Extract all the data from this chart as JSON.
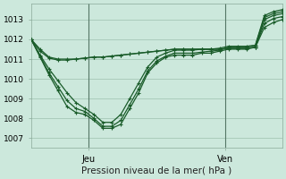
{
  "xlabel": "Pression niveau de la mer( hPa )",
  "bg_color": "#cce8dc",
  "grid_color": "#aaccbc",
  "line_color": "#1a5c2a",
  "ylim": [
    1006.5,
    1013.8
  ],
  "xlim": [
    0,
    44
  ],
  "yticks": [
    1007,
    1008,
    1009,
    1010,
    1011,
    1012,
    1013
  ],
  "xtick_positions": [
    10,
    34
  ],
  "xtick_labels": [
    "Jeu",
    "Ven"
  ],
  "vline_positions": [
    10,
    34
  ],
  "series": [
    [
      1012.0,
      1011.1,
      1010.2,
      1009.4,
      1008.6,
      1008.3,
      1008.2,
      1007.9,
      1007.5,
      1007.5,
      1007.7,
      1008.5,
      1009.3,
      1010.3,
      1010.8,
      1011.1,
      1011.2,
      1011.2,
      1011.2,
      1011.3,
      1011.3,
      1011.4,
      1011.5,
      1011.5,
      1011.5,
      1011.6,
      1013.0,
      1013.2,
      1013.3
    ],
    [
      1012.0,
      1011.15,
      1010.3,
      1009.6,
      1008.9,
      1008.5,
      1008.35,
      1008.0,
      1007.6,
      1007.6,
      1007.9,
      1008.7,
      1009.5,
      1010.4,
      1010.9,
      1011.15,
      1011.3,
      1011.3,
      1011.3,
      1011.35,
      1011.4,
      1011.45,
      1011.6,
      1011.6,
      1011.6,
      1011.7,
      1013.1,
      1013.3,
      1013.4
    ],
    [
      1012.0,
      1011.2,
      1010.5,
      1009.9,
      1009.3,
      1008.8,
      1008.5,
      1008.2,
      1007.8,
      1007.8,
      1008.2,
      1009.0,
      1009.8,
      1010.6,
      1011.1,
      1011.3,
      1011.45,
      1011.45,
      1011.45,
      1011.5,
      1011.5,
      1011.55,
      1011.65,
      1011.65,
      1011.65,
      1011.7,
      1013.2,
      1013.4,
      1013.5
    ],
    [
      1012.0,
      1011.5,
      1011.1,
      1011.0,
      1011.0,
      1011.0,
      1011.05,
      1011.1,
      1011.1,
      1011.15,
      1011.2,
      1011.25,
      1011.3,
      1011.35,
      1011.4,
      1011.45,
      1011.5,
      1011.5,
      1011.5,
      1011.5,
      1011.5,
      1011.5,
      1011.55,
      1011.55,
      1011.55,
      1011.6,
      1012.8,
      1013.05,
      1013.15
    ],
    [
      1012.0,
      1011.4,
      1011.05,
      1010.95,
      1010.95,
      1011.0,
      1011.05,
      1011.1,
      1011.1,
      1011.15,
      1011.2,
      1011.25,
      1011.3,
      1011.35,
      1011.4,
      1011.45,
      1011.5,
      1011.5,
      1011.5,
      1011.5,
      1011.5,
      1011.5,
      1011.55,
      1011.55,
      1011.55,
      1011.6,
      1012.6,
      1012.85,
      1013.0
    ]
  ],
  "marker_size": 3.0,
  "line_width": 0.9
}
